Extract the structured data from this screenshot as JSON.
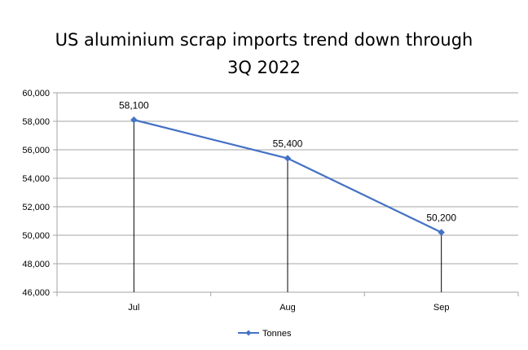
{
  "chart_data": {
    "type": "line",
    "title_lines": [
      "US aluminium scrap imports trend down through",
      "3Q 2022"
    ],
    "xlabel": "",
    "ylabel": "",
    "categories": [
      "Jul",
      "Aug",
      "Sep"
    ],
    "series": [
      {
        "name": "Tonnes",
        "values": [
          58100,
          55400,
          50200
        ],
        "color": "#4472c4",
        "data_labels": [
          "58,100",
          "55,400",
          "50,200"
        ]
      }
    ],
    "ylim": [
      46000,
      60000
    ],
    "y_ticks": [
      46000,
      48000,
      50000,
      52000,
      54000,
      56000,
      58000,
      60000
    ],
    "y_tick_labels": [
      "46,000",
      "48,000",
      "50,000",
      "52,000",
      "54,000",
      "56,000",
      "58,000",
      "60,000"
    ],
    "drop_lines": true,
    "drop_line_color": "#000000",
    "grid": true,
    "grid_color": "#a6a6a6",
    "legend_position": "bottom",
    "marker": "diamond"
  }
}
